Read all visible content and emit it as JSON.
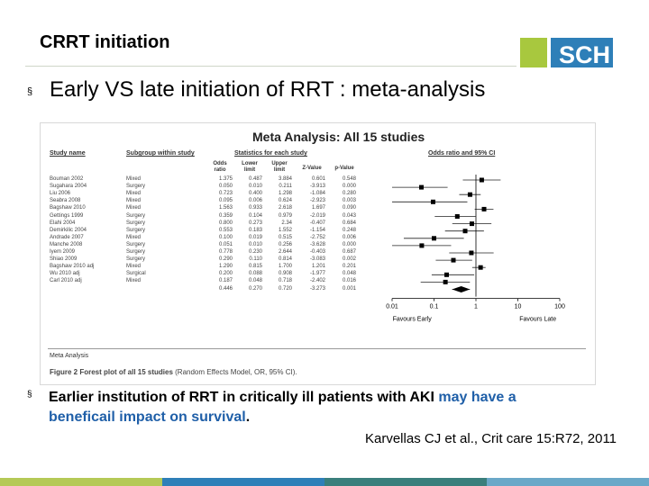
{
  "slide": {
    "title": "CRRT initiation",
    "logo_text": "SCH",
    "bullet_marker": "§",
    "bullet1": "Early VS late initiation of RRT : meta-analysis",
    "bullet2_part1": "Earlier institution of RRT in critically ill patients with AKI ",
    "bullet2_part2": "may have a",
    "bullet2_part3": "beneficail impact on survival",
    "bullet2_part4": ".",
    "citation": "Karvellas CJ et al., Crit care 15:R72, 2011"
  },
  "figure": {
    "title": "Meta Analysis: All 15   studies",
    "col_study": "Study name",
    "col_subgroup": "Subgroup within study",
    "col_stats": "Statistics for each study",
    "col_or": "Odds ratio and 95% CI",
    "sub_or": "Odds ratio",
    "sub_lower": "Lower limit",
    "sub_upper": "Upper limit",
    "sub_z": "Z-Value",
    "sub_p": "p-Value",
    "footer": "Meta Analysis",
    "caption_bold": "Figure 2 Forest plot of all 15 studies",
    "caption_rest": " (Random Effects Model, OR, 95% CI).",
    "axis_ticks": [
      "0.01",
      "0.1",
      "1",
      "10",
      "100"
    ],
    "favours_left": "Favours Early",
    "favours_right": "Favours Late",
    "rows": [
      {
        "study": "Bouman 2002",
        "subgroup": "Mixed",
        "or": "1.375",
        "lower": "0.487",
        "upper": "3.884",
        "z": "0.601",
        "p": "0.548"
      },
      {
        "study": "Sugahara 2004",
        "subgroup": "Surgery",
        "or": "0.050",
        "lower": "0.010",
        "upper": "0.211",
        "z": "-3.913",
        "p": "0.000"
      },
      {
        "study": "Liu 2006",
        "subgroup": "Mixed",
        "or": "0.723",
        "lower": "0.400",
        "upper": "1.298",
        "z": "-1.084",
        "p": "0.280"
      },
      {
        "study": "Seabra 2008",
        "subgroup": "Mixed",
        "or": "0.095",
        "lower": "0.006",
        "upper": "0.624",
        "z": "-2.923",
        "p": "0.003"
      },
      {
        "study": "Bagshaw 2010",
        "subgroup": "Mixed",
        "or": "1.563",
        "lower": "0.933",
        "upper": "2.618",
        "z": "1.697",
        "p": "0.090"
      },
      {
        "study": "Gettings 1999",
        "subgroup": "Surgery",
        "or": "0.359",
        "lower": "0.104",
        "upper": "0.979",
        "z": "-2.019",
        "p": "0.043"
      },
      {
        "study": "Elahi 2004",
        "subgroup": "Surgery",
        "or": "0.800",
        "lower": "0.273",
        "upper": "2.34",
        "z": "-0.407",
        "p": "0.684"
      },
      {
        "study": "Demirkilic 2004",
        "subgroup": "Surgery",
        "or": "0.553",
        "lower": "0.183",
        "upper": "1.552",
        "z": "-1.154",
        "p": "0.248"
      },
      {
        "study": "Andrade 2007",
        "subgroup": "Mixed",
        "or": "0.100",
        "lower": "0.019",
        "upper": "0.515",
        "z": "-2.752",
        "p": "0.006"
      },
      {
        "study": "Manche 2008",
        "subgroup": "Surgery",
        "or": "0.051",
        "lower": "0.010",
        "upper": "0.256",
        "z": "-3.628",
        "p": "0.000"
      },
      {
        "study": "Iyem 2009",
        "subgroup": "Surgery",
        "or": "0.778",
        "lower": "0.230",
        "upper": "2.644",
        "z": "-0.403",
        "p": "0.687"
      },
      {
        "study": "Shiao 2009",
        "subgroup": "Surgery",
        "or": "0.290",
        "lower": "0.110",
        "upper": "0.814",
        "z": "-3.083",
        "p": "0.002"
      },
      {
        "study": "Bagshaw 2010 adj",
        "subgroup": "Mixed",
        "or": "1.290",
        "lower": "0.815",
        "upper": "1.700",
        "z": "1.201",
        "p": "0.201"
      },
      {
        "study": "Wu 2010 adj",
        "subgroup": "Surgical",
        "or": "0.200",
        "lower": "0.088",
        "upper": "0.908",
        "z": "-1.977",
        "p": "0.048"
      },
      {
        "study": "Carl 2010 adj",
        "subgroup": "Mixed",
        "or": "0.187",
        "lower": "0.048",
        "upper": "0.718",
        "z": "-2.402",
        "p": "0.016"
      },
      {
        "study": "",
        "subgroup": "",
        "or": "0.446",
        "lower": "0.270",
        "upper": "0.720",
        "z": "-3.273",
        "p": "0.001"
      }
    ]
  },
  "colors": {
    "accent_blue": "#1f5fa8",
    "logo_blue": "#2e7fb8",
    "logo_green": "#a8c83e",
    "bar": [
      "#b5c957",
      "#2e7fb8",
      "#3a7f7c",
      "#6aa8c8"
    ]
  }
}
